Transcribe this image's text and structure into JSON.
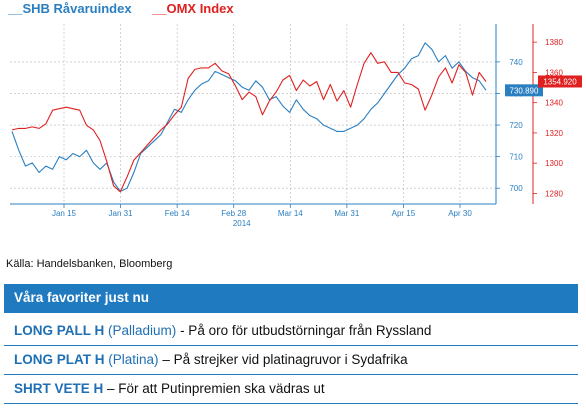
{
  "chart_data": {
    "type": "line",
    "year_label": "2014",
    "x_ticks": [
      "Jan 15",
      "Jan 31",
      "Feb 14",
      "Feb 28",
      "Mar 14",
      "Mar 31",
      "Apr 15",
      "Apr 30"
    ],
    "y_left": {
      "range": [
        695,
        752
      ],
      "ticks": [
        700,
        710,
        720,
        730,
        740
      ]
    },
    "y_right": {
      "range": [
        1273,
        1392
      ],
      "ticks": [
        1280,
        1300,
        1320,
        1340,
        1360,
        1380
      ]
    },
    "series": [
      {
        "name": "SHB Råvaruindex",
        "axis": "left",
        "color": "#2a7fc1",
        "last_value": "730.890",
        "values": [
          718,
          712,
          707,
          708,
          705,
          707,
          706,
          710,
          709,
          711,
          710,
          712,
          708,
          706,
          708,
          702,
          699,
          700,
          705,
          711,
          713,
          715,
          717,
          721,
          725,
          724,
          728,
          731,
          733,
          734,
          737,
          736,
          735,
          734,
          732,
          731,
          734,
          732,
          728,
          729,
          726,
          724,
          728,
          725,
          723,
          722,
          720,
          719,
          718,
          718,
          719,
          720,
          722,
          725,
          727,
          730,
          733,
          736,
          738,
          741,
          742,
          746,
          744,
          740,
          742,
          738,
          740,
          737,
          735,
          734,
          731
        ]
      },
      {
        "name": "OMX Index",
        "axis": "right",
        "color": "#e02020",
        "last_value": "1354.920",
        "values": [
          1322,
          1323,
          1323,
          1324,
          1323,
          1326,
          1335,
          1336,
          1337,
          1336,
          1335,
          1325,
          1322,
          1315,
          1301,
          1285,
          1281,
          1291,
          1302,
          1307,
          1312,
          1317,
          1322,
          1326,
          1332,
          1337,
          1356,
          1362,
          1363,
          1363,
          1366,
          1361,
          1359,
          1351,
          1342,
          1347,
          1344,
          1332,
          1341,
          1347,
          1355,
          1358,
          1348,
          1355,
          1351,
          1354,
          1342,
          1352,
          1341,
          1348,
          1337,
          1352,
          1366,
          1373,
          1366,
          1367,
          1360,
          1360,
          1353,
          1352,
          1349,
          1335,
          1345,
          1357,
          1363,
          1353,
          1365,
          1360,
          1345,
          1360,
          1354
        ]
      }
    ]
  },
  "source": "Källa: Handelsbanken, Bloomberg",
  "favorites": {
    "title": "Våra favoriter just nu",
    "items": [
      {
        "code": "LONG PALL H",
        "asset": "(Palladium)",
        "desc": "- På oro för utbudstörningar från Ryssland"
      },
      {
        "code": "LONG PLAT H",
        "asset": "(Platina)",
        "desc": "– På strejker vid platinagruvor i Sydafrika"
      },
      {
        "code": "SHRT VETE H",
        "asset": "",
        "desc": "– För att Putinpremien ska vädras ut"
      }
    ]
  }
}
